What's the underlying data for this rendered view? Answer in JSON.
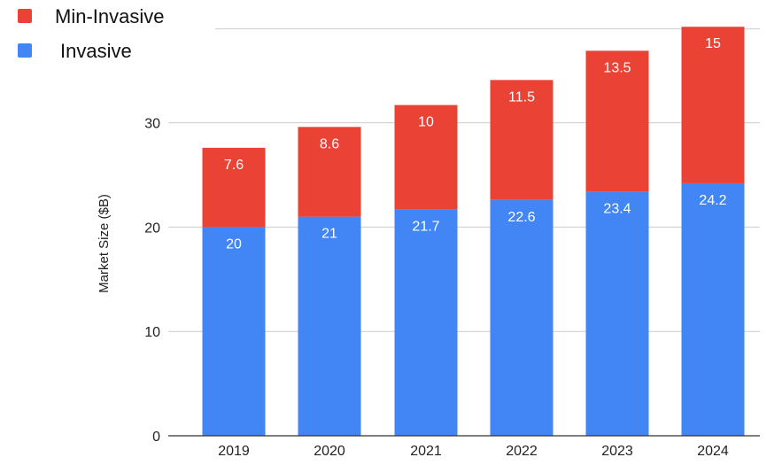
{
  "chart_data": {
    "type": "bar",
    "stacked": true,
    "categories": [
      "2019",
      "2020",
      "2021",
      "2022",
      "2023",
      "2024"
    ],
    "series": [
      {
        "name": "Invasive",
        "values": [
          20,
          21,
          21.7,
          22.6,
          23.4,
          24.2
        ],
        "color": "#4285F4"
      },
      {
        "name": "Min-Invasive",
        "values": [
          7.6,
          8.6,
          10,
          11.5,
          13.5,
          15
        ],
        "color": "#EA4335"
      }
    ],
    "title": "",
    "xlabel": "",
    "ylabel": "Market Size ($B)",
    "ylim": [
      0,
      39
    ],
    "yticks": [
      0,
      10,
      20,
      30
    ],
    "grid": true,
    "legend": {
      "placement": "top-left",
      "entries": [
        {
          "label": "Min-Invasive",
          "color": "#EA4335"
        },
        {
          "label": " Invasive",
          "color": "#4285F4"
        }
      ]
    }
  }
}
